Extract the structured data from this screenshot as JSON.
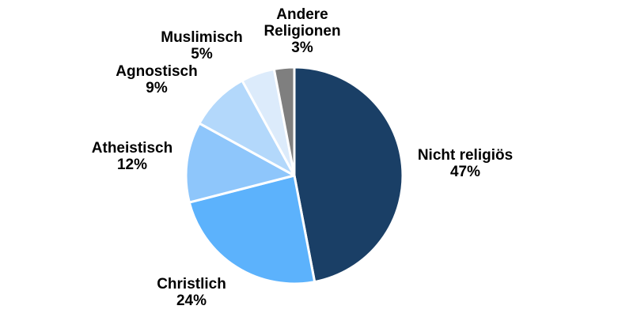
{
  "chart_data": {
    "type": "pie",
    "title": "",
    "start_angle_deg": 0,
    "direction": "clockwise",
    "categories": [
      "Nicht religiös",
      "Christlich",
      "Atheistisch",
      "Agnostisch",
      "Muslimisch",
      "Andere Religionen"
    ],
    "values": [
      47,
      24,
      12,
      9,
      5,
      3
    ],
    "labels": [
      {
        "lines": [
          "Nicht religiös",
          "47%"
        ]
      },
      {
        "lines": [
          "Christlich",
          "24%"
        ]
      },
      {
        "lines": [
          "Atheistisch",
          "12%"
        ]
      },
      {
        "lines": [
          "Agnostisch",
          "9%"
        ]
      },
      {
        "lines": [
          "Muslimisch",
          "5%"
        ]
      },
      {
        "lines": [
          "Andere",
          "Religionen",
          "3%"
        ]
      }
    ],
    "colors": [
      "#1a3f66",
      "#5cb2fc",
      "#8ec6fb",
      "#b3d8fb",
      "#dcebfb",
      "#7f7f7f"
    ],
    "legend": "none"
  }
}
